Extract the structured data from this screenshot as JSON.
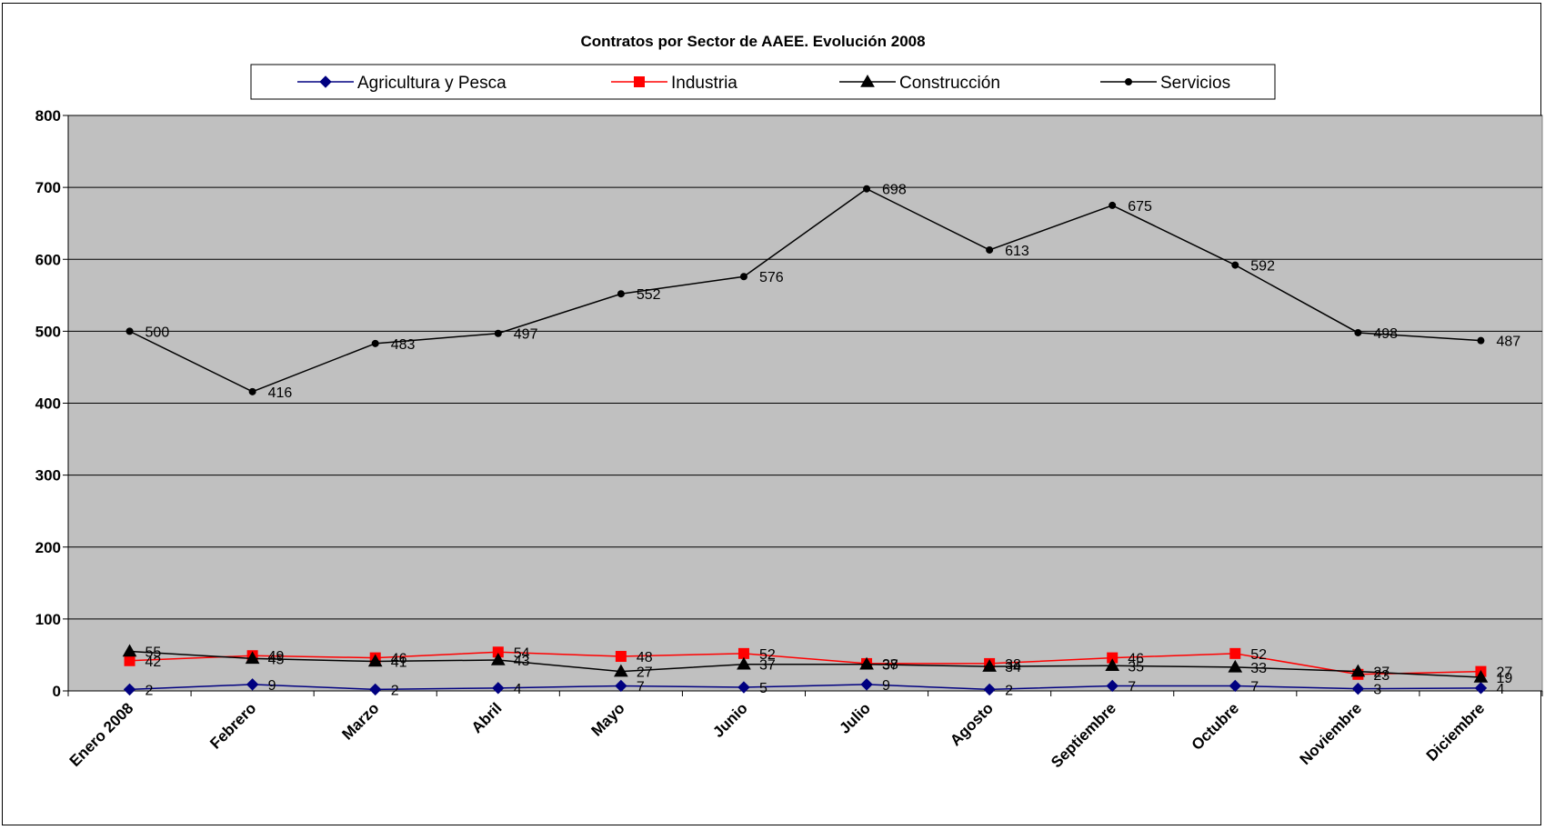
{
  "chart_data": {
    "type": "line",
    "title": "Contratos por Sector de AAEE. Evolución 2008",
    "xlabel": "",
    "ylabel": "",
    "ylim": [
      0,
      800
    ],
    "yticks": [
      0,
      100,
      200,
      300,
      400,
      500,
      600,
      700,
      800
    ],
    "grid": true,
    "legend_position": "top",
    "plot_background": "#c0c0c0",
    "categories": [
      "Enero 2008",
      "Febrero",
      "Marzo",
      "Abril",
      "Mayo",
      "Junio",
      "Julio",
      "Agosto",
      "Septiembre",
      "Octubre",
      "Noviembre",
      "Diciembre"
    ],
    "series": [
      {
        "name": "Agricultura y Pesca",
        "color": "#000080",
        "marker": "diamond",
        "values": [
          2,
          9,
          2,
          4,
          7,
          5,
          9,
          2,
          7,
          7,
          3,
          4
        ]
      },
      {
        "name": "Industria",
        "color": "#ff0000",
        "marker": "square",
        "values": [
          42,
          49,
          46,
          54,
          48,
          52,
          38,
          38,
          46,
          52,
          23,
          27
        ]
      },
      {
        "name": "Construcción",
        "color": "#000000",
        "marker": "triangle",
        "values": [
          55,
          45,
          41,
          43,
          27,
          37,
          37,
          34,
          35,
          33,
          27,
          19
        ]
      },
      {
        "name": "Servicios",
        "color": "#000000",
        "marker": "circle",
        "values": [
          500,
          416,
          483,
          497,
          552,
          576,
          698,
          613,
          675,
          592,
          498,
          487
        ]
      }
    ]
  }
}
